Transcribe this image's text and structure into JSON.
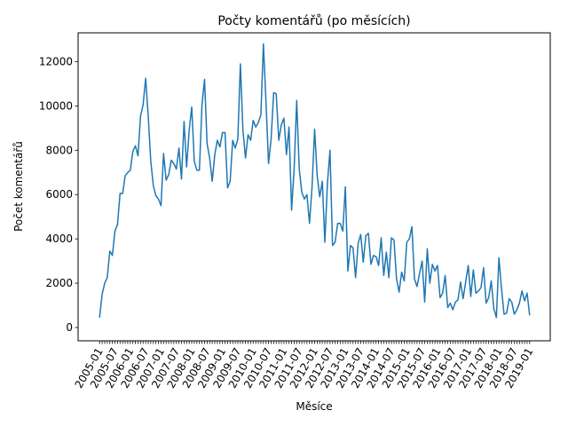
{
  "chart_data": {
    "type": "line",
    "title": "Počty komentářů (po měsících)",
    "xlabel": "Měsíce",
    "ylabel": "Počet komentářů",
    "x_start": "2005-01",
    "x_tick_labels": [
      "2005-01",
      "2005-07",
      "2006-01",
      "2006-07",
      "2007-01",
      "2007-07",
      "2008-01",
      "2008-07",
      "2009-01",
      "2009-07",
      "2010-01",
      "2010-07",
      "2011-01",
      "2011-07",
      "2012-01",
      "2012-07",
      "2013-01",
      "2013-07",
      "2014-01",
      "2014-07",
      "2015-01",
      "2015-07",
      "2016-01",
      "2016-07",
      "2017-01",
      "2017-07",
      "2018-01",
      "2018-07",
      "2019-01"
    ],
    "y_ticks": [
      0,
      2000,
      4000,
      6000,
      8000,
      10000,
      12000
    ],
    "ylim": [
      -600,
      13300
    ],
    "grid": false,
    "legend": "none",
    "line_color": "#1f77b4",
    "series": [
      {
        "values": [
          450,
          1500,
          2000,
          2250,
          3450,
          3250,
          4350,
          4650,
          6050,
          6050,
          6850,
          7000,
          7100,
          7950,
          8200,
          7750,
          9550,
          10050,
          11250,
          9550,
          7500,
          6400,
          5950,
          5800,
          5500,
          7850,
          6650,
          6900,
          7550,
          7400,
          7150,
          8100,
          6700,
          9300,
          7250,
          8900,
          9950,
          7500,
          7100,
          7100,
          10050,
          11200,
          8300,
          7650,
          6600,
          7800,
          8450,
          8150,
          8800,
          8800,
          6300,
          6600,
          8450,
          8100,
          8500,
          11900,
          8900,
          7650,
          8700,
          8450,
          9350,
          9050,
          9250,
          9600,
          12800,
          10200,
          7400,
          8500,
          10600,
          10550,
          8450,
          9150,
          9450,
          7800,
          9050,
          5300,
          7150,
          10250,
          7150,
          6100,
          5800,
          6000,
          4700,
          6350,
          8950,
          6850,
          5900,
          6600,
          3850,
          6500,
          8000,
          3700,
          3850,
          4700,
          4700,
          4350,
          6350,
          2550,
          3700,
          3600,
          2250,
          3800,
          4200,
          2950,
          4150,
          4250,
          2850,
          3250,
          3200,
          2800,
          4050,
          2350,
          3400,
          2250,
          4050,
          3950,
          2200,
          1600,
          2500,
          2100,
          3850,
          4000,
          4550,
          2200,
          1850,
          2450,
          3000,
          1150,
          3550,
          2000,
          2850,
          2550,
          2800,
          1350,
          1550,
          2350,
          900,
          1100,
          800,
          1150,
          1250,
          2050,
          1300,
          2050,
          2800,
          1400,
          2600,
          1550,
          1650,
          1800,
          2700,
          1100,
          1350,
          2100,
          850,
          450,
          3150,
          1750,
          600,
          650,
          1300,
          1150,
          600,
          800,
          1100,
          1650,
          1200,
          1550,
          550
        ]
      }
    ]
  }
}
